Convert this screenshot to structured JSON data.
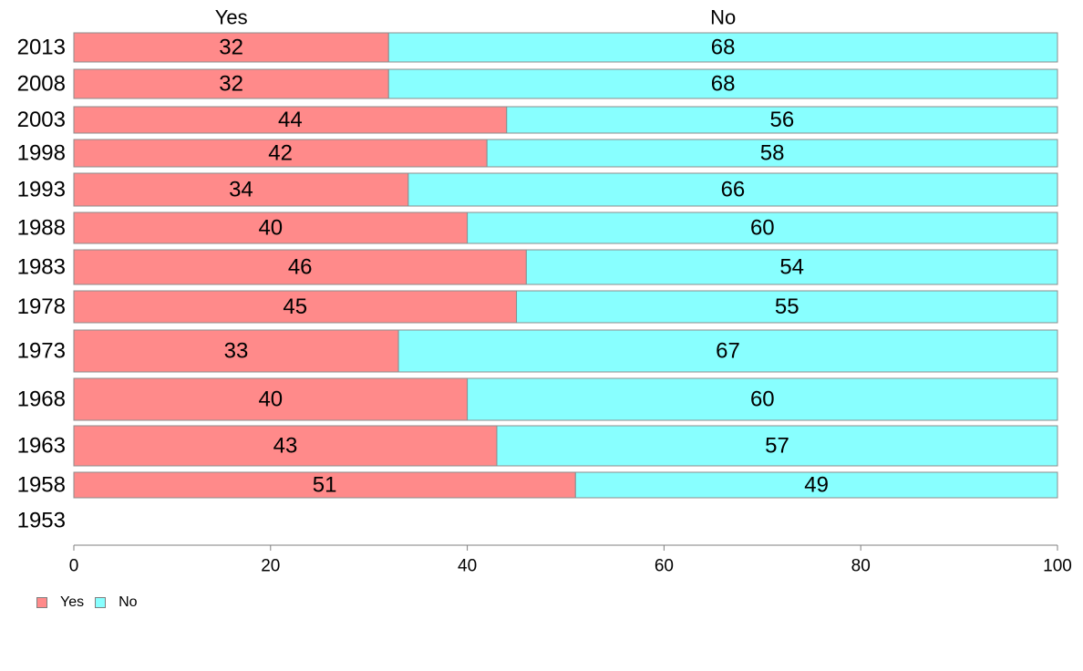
{
  "chart_data": {
    "type": "bar",
    "orientation": "horizontal",
    "stacked": true,
    "title": "",
    "xlabel": "",
    "ylabel": "",
    "xlim": [
      0,
      100
    ],
    "x_ticks": [
      0,
      20,
      40,
      60,
      80,
      100
    ],
    "grid": false,
    "legend_position": "bottom-left",
    "categories": [
      "2013",
      "2008",
      "2003",
      "1998",
      "1993",
      "1988",
      "1983",
      "1978",
      "1973",
      "1968",
      "1963",
      "1958",
      "1953"
    ],
    "series": [
      {
        "name": "Yes",
        "color": "#ff8a8a",
        "values": [
          32,
          32,
          44,
          42,
          34,
          40,
          46,
          45,
          33,
          40,
          43,
          51,
          null
        ]
      },
      {
        "name": "No",
        "color": "#88ffff",
        "values": [
          68,
          68,
          56,
          58,
          66,
          60,
          54,
          55,
          67,
          60,
          57,
          49,
          null
        ]
      }
    ],
    "top_labels": [
      "Yes",
      "No"
    ]
  }
}
